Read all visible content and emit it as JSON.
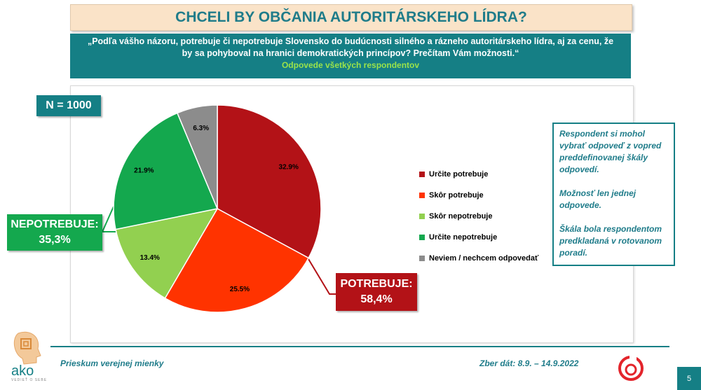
{
  "header": {
    "title": "CHCELI BY OBČANIA AUTORITÁRSKEHO LÍDRA?",
    "question": "„Podľa vášho názoru, potrebuje či nepotrebuje Slovensko do budúcnosti silného a rázneho autoritárskeho lídra, aj za cenu, že by sa pohyboval na hranici demokratických princípov? Prečítam Vám možnosti.“",
    "subtitle": "Odpovede všetkých respondentov"
  },
  "sample": {
    "label": "N = 1000"
  },
  "chart_data": {
    "type": "pie",
    "title": "CHCELI BY OBČANIA AUTORITÁRSKEHO LÍDRA?",
    "categories": [
      "Určite potrebuje",
      "Skôr potrebuje",
      "Skôr nepotrebuje",
      "Určite nepotrebuje",
      "Neviem / nechcem odpovedať"
    ],
    "values": [
      32.9,
      25.5,
      13.4,
      21.9,
      6.3
    ],
    "labels": [
      "32.9%",
      "25.5%",
      "13.4%",
      "21.9%",
      "6.3%"
    ],
    "colors": [
      "#b31217",
      "#ff3300",
      "#92d050",
      "#14a84e",
      "#8c8c8c"
    ],
    "start_angle_deg": 0,
    "direction": "clockwise",
    "legend_position": "right"
  },
  "groups": {
    "nepotrebuje": {
      "label": "NEPOTREBUJE:",
      "value": "35,3%",
      "color": "#14a84e"
    },
    "potrebuje": {
      "label": "POTREBUJE:",
      "value": "58,4%",
      "color": "#b31217"
    }
  },
  "note": {
    "lines": [
      "Respondent si mohol vybrať odpoveď z vopred preddefinovanej škály odpovedí.",
      "Možnosť len jednej odpovede.",
      "Škála bola respondentom predkladaná v rotovanom poradí."
    ]
  },
  "footer": {
    "left": "Prieskum verejnej mienky",
    "right": "Zber dát: 8.9. – 14.9.2022",
    "page": "5",
    "logo_text": "ako",
    "logo_caption": "VEDIEŤ O SEBE"
  }
}
